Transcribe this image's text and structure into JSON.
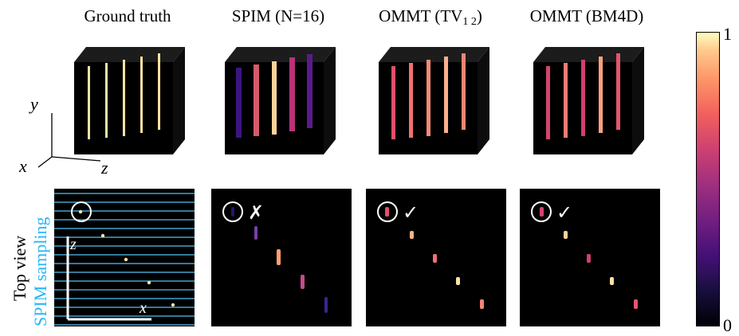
{
  "columns": [
    {
      "title": "Ground truth"
    },
    {
      "title": "SPIM (N=16)"
    },
    {
      "title_main": "OMMT (TV",
      "title_sub": "1  2",
      "title_end": ")"
    },
    {
      "title": "OMMT (BM4D)"
    }
  ],
  "axes3d": {
    "y": "y",
    "x": "x",
    "z": "z"
  },
  "row_labels": {
    "top_view": "Top view",
    "spim_sampling": "SPIM sampling"
  },
  "inset_axes": {
    "z": "z",
    "x": "x"
  },
  "marks": {
    "fail": "✗",
    "pass": "✓"
  },
  "colorbar": {
    "max_label": "1",
    "min_label": "0",
    "colormap": [
      "#000004",
      "#180f3e",
      "#451077",
      "#721f81",
      "#9f2f7f",
      "#cd4071",
      "#f1605d",
      "#fd9567",
      "#fec98d",
      "#fcfdbf"
    ]
  },
  "colors": {
    "sampling_lines": "#4fc3f7",
    "sampling_text": "#29b6f6",
    "circle": "#ffffff"
  }
}
